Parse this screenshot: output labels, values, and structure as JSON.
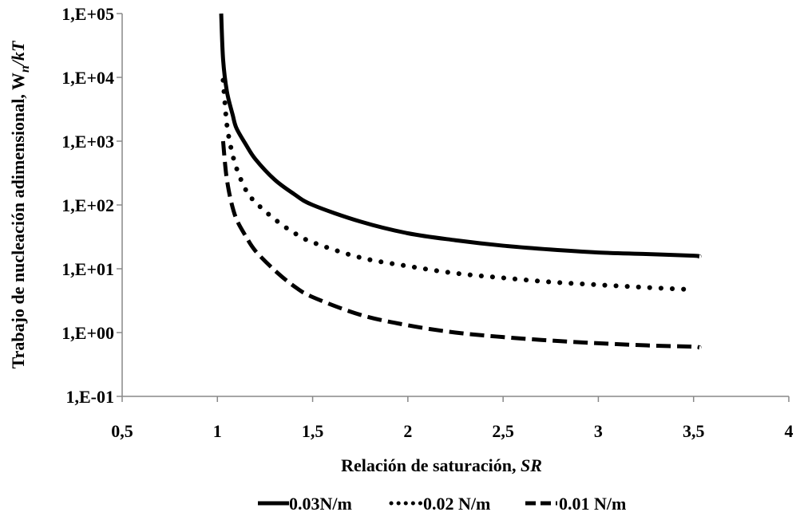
{
  "chart_data": {
    "type": "line",
    "xlabel": "Relación de saturación,",
    "xlabel_var": "SR",
    "ylabel": "Trabajo de nucleación adimensional, W",
    "ylabel_sub": "n",
    "ylabel_rest": "/kT",
    "xlim": [
      0.5,
      4
    ],
    "ylim": [
      0.1,
      100000
    ],
    "yscale": "log",
    "xticks": [
      "0,5",
      "1",
      "1,5",
      "2",
      "2,5",
      "3",
      "3,5",
      "4"
    ],
    "yticks": [
      "1,E-01",
      "1,E+00",
      "1,E+01",
      "1,E+02",
      "1,E+03",
      "1,E+04",
      "1,E+05"
    ],
    "legend_position": "bottom",
    "grid": false,
    "series": [
      {
        "name": "0.03N/m",
        "style": "solid",
        "x": [
          1.02,
          1.03,
          1.05,
          1.08,
          1.1,
          1.15,
          1.2,
          1.3,
          1.4,
          1.5,
          1.75,
          2.0,
          2.25,
          2.5,
          2.75,
          3.0,
          3.25,
          3.5,
          3.53
        ],
        "y": [
          100000,
          19000,
          6000,
          2600,
          1600,
          880,
          520,
          250,
          150,
          100,
          55,
          36,
          28,
          23,
          20,
          18,
          17,
          16,
          15.5
        ]
      },
      {
        "name": "0.02 N/m",
        "style": "dotted",
        "x": [
          1.03,
          1.04,
          1.05,
          1.07,
          1.1,
          1.15,
          1.2,
          1.3,
          1.4,
          1.5,
          1.75,
          2.0,
          2.25,
          2.5,
          2.75,
          3.0,
          3.25,
          3.5
        ],
        "y": [
          9000,
          3800,
          1800,
          820,
          380,
          170,
          110,
          60,
          37,
          26,
          15,
          11,
          8.5,
          7.2,
          6.2,
          5.6,
          5.1,
          4.7
        ]
      },
      {
        "name": "0.01 N/m",
        "style": "dashed",
        "x": [
          1.03,
          1.04,
          1.05,
          1.07,
          1.1,
          1.15,
          1.2,
          1.3,
          1.4,
          1.5,
          1.75,
          2.0,
          2.25,
          2.5,
          2.75,
          3.0,
          3.25,
          3.5,
          3.53
        ],
        "y": [
          1000,
          450,
          250,
          120,
          60,
          32,
          19,
          9.5,
          5.4,
          3.6,
          1.9,
          1.3,
          1.0,
          0.85,
          0.75,
          0.68,
          0.63,
          0.6,
          0.58
        ]
      }
    ]
  }
}
